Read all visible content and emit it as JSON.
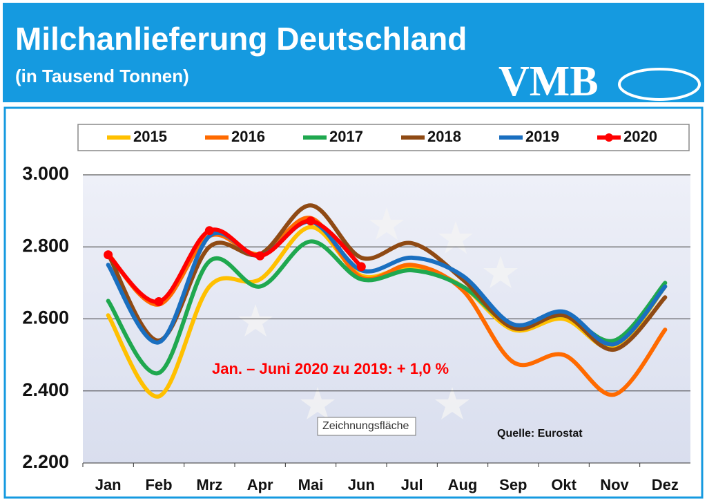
{
  "chart_data": {
    "type": "line",
    "title": "Milchanlieferung Deutschland",
    "subtitle": "(in Tausend Tonnen)",
    "logo": "VMB",
    "annotation": "Jan. –  Juni 2020 zu 2019: + 1,0 %",
    "source": "Quelle: Eurostat",
    "tooltip": "Zeichnungsfläche",
    "categories": [
      "Jan",
      "Feb",
      "Mrz",
      "Apr",
      "Mai",
      "Jun",
      "Jul",
      "Aug",
      "Sep",
      "Okt",
      "Nov",
      "Dez"
    ],
    "series": [
      {
        "name": "2015",
        "color": "#ffc000",
        "values": [
          2610,
          2385,
          2690,
          2710,
          2855,
          2720,
          2745,
          2690,
          2570,
          2600,
          2520,
          2690
        ]
      },
      {
        "name": "2016",
        "color": "#ff6a00",
        "values": [
          2780,
          2640,
          2830,
          2780,
          2880,
          2715,
          2750,
          2680,
          2480,
          2500,
          2390,
          2570
        ]
      },
      {
        "name": "2017",
        "color": "#1fa84f",
        "values": [
          2650,
          2450,
          2760,
          2690,
          2815,
          2710,
          2735,
          2690,
          2580,
          2610,
          2540,
          2700
        ]
      },
      {
        "name": "2018",
        "color": "#8f4a14",
        "values": [
          2780,
          2540,
          2800,
          2780,
          2915,
          2770,
          2810,
          2710,
          2575,
          2610,
          2515,
          2660
        ]
      },
      {
        "name": "2019",
        "color": "#1a6fc0",
        "values": [
          2750,
          2535,
          2830,
          2775,
          2870,
          2735,
          2770,
          2720,
          2585,
          2620,
          2530,
          2690
        ]
      },
      {
        "name": "2020",
        "color": "#ff0000",
        "marker": true,
        "values": [
          2778,
          2648,
          2845,
          2775,
          2872,
          2745,
          null,
          null,
          null,
          null,
          null,
          null
        ]
      }
    ],
    "ylim": [
      2200,
      3000
    ],
    "yticks": [
      {
        "value": 2200,
        "label": "2.200"
      },
      {
        "value": 2400,
        "label": "2.400"
      },
      {
        "value": 2600,
        "label": "2.600"
      },
      {
        "value": 2800,
        "label": "2.800"
      },
      {
        "value": 3000,
        "label": "3.000"
      }
    ],
    "grid": true,
    "legend": "top"
  }
}
